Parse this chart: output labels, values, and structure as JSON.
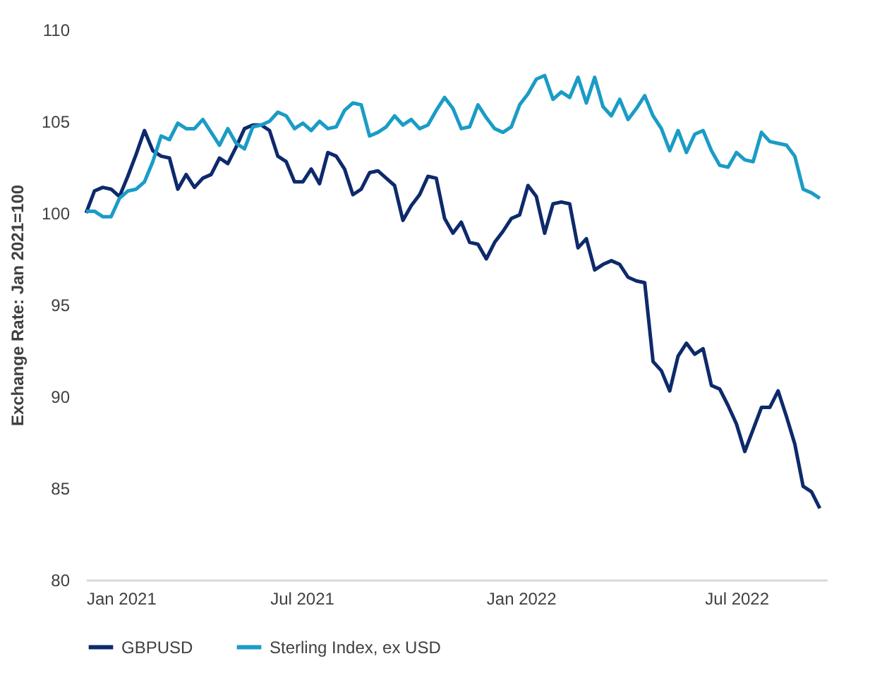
{
  "chart_data": {
    "type": "line",
    "ylabel": "Exchange Rate: Jan 2021=100",
    "x": [
      "2021-01-01",
      "2021-01-08",
      "2021-01-15",
      "2021-01-22",
      "2021-01-29",
      "2021-02-05",
      "2021-02-12",
      "2021-02-19",
      "2021-02-26",
      "2021-03-05",
      "2021-03-12",
      "2021-03-19",
      "2021-03-26",
      "2021-04-02",
      "2021-04-09",
      "2021-04-16",
      "2021-04-23",
      "2021-04-30",
      "2021-05-07",
      "2021-05-14",
      "2021-05-21",
      "2021-05-28",
      "2021-06-04",
      "2021-06-11",
      "2021-06-18",
      "2021-06-25",
      "2021-07-02",
      "2021-07-09",
      "2021-07-16",
      "2021-07-23",
      "2021-07-30",
      "2021-08-06",
      "2021-08-13",
      "2021-08-20",
      "2021-08-27",
      "2021-09-03",
      "2021-09-10",
      "2021-09-17",
      "2021-09-24",
      "2021-10-01",
      "2021-10-08",
      "2021-10-15",
      "2021-10-22",
      "2021-10-29",
      "2021-11-05",
      "2021-11-12",
      "2021-11-19",
      "2021-11-26",
      "2021-12-03",
      "2021-12-10",
      "2021-12-17",
      "2021-12-24",
      "2021-12-31",
      "2022-01-07",
      "2022-01-14",
      "2022-01-21",
      "2022-01-28",
      "2022-02-04",
      "2022-02-11",
      "2022-02-18",
      "2022-02-25",
      "2022-03-04",
      "2022-03-11",
      "2022-03-18",
      "2022-03-25",
      "2022-04-01",
      "2022-04-08",
      "2022-04-15",
      "2022-04-22",
      "2022-04-29",
      "2022-05-06",
      "2022-05-13",
      "2022-05-20",
      "2022-05-27",
      "2022-06-03",
      "2022-06-10",
      "2022-06-17",
      "2022-06-24",
      "2022-07-01",
      "2022-07-08",
      "2022-07-15",
      "2022-07-22",
      "2022-07-29",
      "2022-08-05",
      "2022-08-12",
      "2022-08-19",
      "2022-08-26",
      "2022-09-02",
      "2022-09-09"
    ],
    "series": [
      {
        "name": "GBPUSD",
        "color": "#0d2a6b",
        "values": [
          100.0,
          101.2,
          101.4,
          101.3,
          100.9,
          102.0,
          103.2,
          104.5,
          103.4,
          103.1,
          103.0,
          101.3,
          102.1,
          101.4,
          101.9,
          102.1,
          103.0,
          102.7,
          103.6,
          104.6,
          104.8,
          104.8,
          104.5,
          103.1,
          102.8,
          101.7,
          101.7,
          102.4,
          101.6,
          103.3,
          103.1,
          102.4,
          101.0,
          101.3,
          102.2,
          102.3,
          101.9,
          101.5,
          99.6,
          100.4,
          101.0,
          102.0,
          101.9,
          99.7,
          98.9,
          99.5,
          98.4,
          98.3,
          97.5,
          98.4,
          99.0,
          99.7,
          99.9,
          101.5,
          100.9,
          98.9,
          100.5,
          100.6,
          100.5,
          98.1,
          98.6,
          96.9,
          97.2,
          97.4,
          97.2,
          96.5,
          96.3,
          96.2,
          91.9,
          91.4,
          90.3,
          92.2,
          92.9,
          92.3,
          92.6,
          90.6,
          90.4,
          89.5,
          88.5,
          87.0,
          88.2,
          89.4,
          89.4,
          90.3,
          88.9,
          87.4,
          85.1,
          84.8,
          83.9
        ]
      },
      {
        "name": "Sterling Index, ex USD",
        "color": "#1a9cc6",
        "values": [
          100.1,
          100.1,
          99.8,
          99.8,
          100.8,
          101.2,
          101.3,
          101.7,
          102.8,
          104.2,
          104.0,
          104.9,
          104.6,
          104.6,
          105.1,
          104.4,
          103.7,
          104.6,
          103.8,
          103.5,
          104.7,
          104.8,
          105.0,
          105.5,
          105.3,
          104.6,
          104.9,
          104.5,
          105.0,
          104.6,
          104.7,
          105.6,
          106.0,
          105.9,
          104.2,
          104.4,
          104.7,
          105.3,
          104.8,
          105.1,
          104.6,
          104.8,
          105.6,
          106.3,
          105.7,
          104.6,
          104.7,
          105.9,
          105.2,
          104.6,
          104.4,
          104.7,
          105.9,
          106.5,
          107.3,
          107.5,
          106.2,
          106.6,
          106.3,
          107.4,
          106.0,
          107.4,
          105.8,
          105.3,
          106.2,
          105.1,
          105.7,
          106.4,
          105.3,
          104.6,
          103.4,
          104.5,
          103.3,
          104.3,
          104.5,
          103.4,
          102.6,
          102.5,
          103.3,
          102.9,
          102.8,
          104.4,
          103.9,
          103.8,
          103.7,
          103.1,
          101.3,
          101.1,
          100.8
        ]
      }
    ],
    "xlim": [
      "2021-01-01",
      "2022-09-15"
    ],
    "xticks": [
      {
        "value": "2021-01-01",
        "label": "Jan 2021"
      },
      {
        "value": "2021-07-01",
        "label": "Jul 2021"
      },
      {
        "value": "2022-01-01",
        "label": "Jan 2022"
      },
      {
        "value": "2022-07-01",
        "label": "Jul 2022"
      }
    ],
    "ylim": [
      80,
      110
    ],
    "yticks": [
      80,
      85,
      90,
      95,
      100,
      105,
      110
    ],
    "grid": false,
    "legend": "bottom",
    "marker": "none",
    "line_style": "solid"
  }
}
